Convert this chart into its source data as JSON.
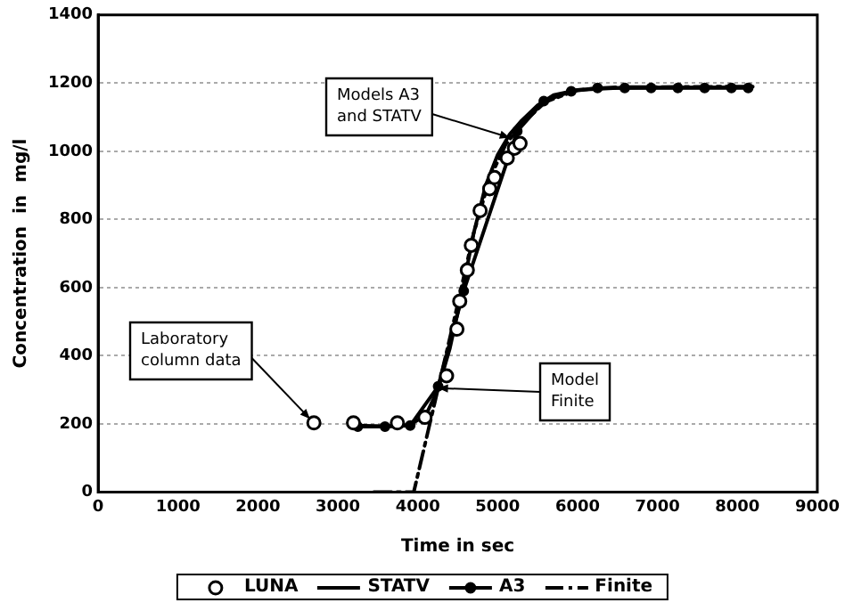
{
  "chart_data": {
    "type": "line",
    "xlabel": "Time in sec",
    "ylabel": "Concentration  in  mg/l",
    "xlim": [
      0,
      9000
    ],
    "xticks": [
      0,
      1000,
      2000,
      3000,
      4000,
      5000,
      6000,
      7000,
      8000,
      9000
    ],
    "ylim": [
      0,
      1400
    ],
    "yticks": [
      0,
      200,
      400,
      600,
      800,
      1000,
      1200,
      1400
    ],
    "grid": "y",
    "legend": "bottom",
    "series": [
      {
        "name": "LUNA",
        "type": "scatter",
        "color": "#000000",
        "marker": "circle",
        "x": [
          2700,
          3195,
          3745,
          4090,
          4360,
          4490,
          4525,
          4620,
          4670,
          4780,
          4900,
          4960,
          5120,
          5210,
          5280
        ],
        "values": [
          203,
          203,
          203,
          219,
          341,
          478,
          560,
          651,
          724,
          826,
          890,
          923,
          980,
          1009,
          1023
        ]
      },
      {
        "name": "STATV",
        "type": "line",
        "color": "#000000",
        "marker": "none",
        "line_style": "solid",
        "x": [
          3200,
          3600,
          3900,
          4100,
          4250,
          4400,
          4550,
          4700,
          4850,
          5000,
          5150,
          5300,
          5500,
          5700,
          6000,
          6500,
          7000,
          8100
        ],
        "values": [
          195,
          193,
          197,
          225,
          300,
          420,
          580,
          760,
          900,
          990,
          1050,
          1090,
          1135,
          1165,
          1180,
          1186,
          1187,
          1188
        ]
      },
      {
        "name": "A3",
        "type": "line",
        "color": "#000000",
        "marker": "circle",
        "line_style": "solid",
        "x": [
          3250,
          3590,
          3905,
          4255,
          4575,
          5245,
          5577,
          5920,
          6250,
          6590,
          6920,
          7255,
          7590,
          7925,
          8135
        ],
        "values": [
          192,
          192,
          195,
          310,
          590,
          1059,
          1147,
          1176,
          1186,
          1186,
          1186,
          1186,
          1186,
          1186,
          1186
        ]
      },
      {
        "name": "Finite",
        "type": "line",
        "color": "#000000",
        "marker": "none",
        "line_style": "dashed",
        "x": [
          3450,
          3950,
          4200,
          4450,
          4700,
          4900,
          5100,
          5300,
          5600,
          6000,
          6500,
          8250
        ],
        "values": [
          0,
          0,
          250,
          500,
          760,
          920,
          1020,
          1080,
          1145,
          1180,
          1188,
          1190
        ]
      }
    ],
    "annotations": [
      {
        "text": "Models A3 and STATV",
        "x": 5150,
        "y": 1040
      },
      {
        "text": "Laboratory column data",
        "x": 2650,
        "y": 215
      },
      {
        "text": "Model Finite",
        "x": 4255,
        "y": 305
      }
    ]
  }
}
